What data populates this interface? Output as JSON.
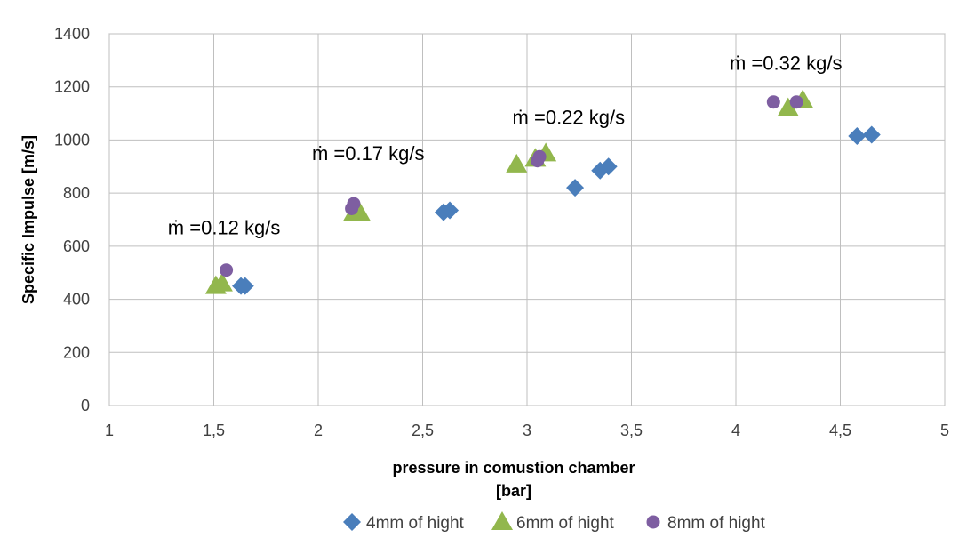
{
  "chart_data": {
    "type": "scatter",
    "title": "",
    "xlabel_lines": [
      "pressure in comustion chamber",
      "[bar]"
    ],
    "ylabel": "Specific Impulse [m/s]",
    "xlim": [
      1,
      5
    ],
    "ylim": [
      0,
      1400
    ],
    "x_ticks": [
      "1",
      "1,5",
      "2",
      "2,5",
      "3",
      "3,5",
      "4",
      "4,5",
      "5"
    ],
    "y_ticks": [
      "0",
      "200",
      "400",
      "600",
      "800",
      "1000",
      "1200",
      "1400"
    ],
    "grid": true,
    "legend_position": "bottom",
    "series": [
      {
        "name": "4mm of hight",
        "marker": "diamond",
        "color": "#4a7ebb",
        "points": [
          {
            "x": 1.63,
            "y": 450
          },
          {
            "x": 1.65,
            "y": 450
          },
          {
            "x": 2.6,
            "y": 728
          },
          {
            "x": 2.63,
            "y": 735
          },
          {
            "x": 3.23,
            "y": 820
          },
          {
            "x": 3.35,
            "y": 885
          },
          {
            "x": 3.39,
            "y": 900
          },
          {
            "x": 4.58,
            "y": 1015
          },
          {
            "x": 4.65,
            "y": 1020
          }
        ]
      },
      {
        "name": "6mm of hight",
        "marker": "triangle",
        "color": "#92b74d",
        "points": [
          {
            "x": 1.51,
            "y": 450
          },
          {
            "x": 1.54,
            "y": 460
          },
          {
            "x": 2.17,
            "y": 725
          },
          {
            "x": 2.2,
            "y": 725
          },
          {
            "x": 2.95,
            "y": 908
          },
          {
            "x": 3.04,
            "y": 930
          },
          {
            "x": 3.09,
            "y": 950
          },
          {
            "x": 4.25,
            "y": 1120
          },
          {
            "x": 4.32,
            "y": 1150
          }
        ]
      },
      {
        "name": "8mm of hight",
        "marker": "circle",
        "color": "#7e5ea1",
        "points": [
          {
            "x": 1.56,
            "y": 510
          },
          {
            "x": 2.16,
            "y": 742
          },
          {
            "x": 2.17,
            "y": 760
          },
          {
            "x": 3.05,
            "y": 922
          },
          {
            "x": 3.06,
            "y": 937
          },
          {
            "x": 4.18,
            "y": 1143
          },
          {
            "x": 4.29,
            "y": 1143
          }
        ]
      }
    ],
    "annotations": [
      {
        "text": "ṁ =0.12 kg/s",
        "x": 1.28,
        "y": 645
      },
      {
        "text": "ṁ =0.17 kg/s",
        "x": 1.97,
        "y": 925
      },
      {
        "text": "ṁ =0.22 kg/s",
        "x": 2.93,
        "y": 1060
      },
      {
        "text": "ṁ =0.32 kg/s",
        "x": 3.97,
        "y": 1265
      }
    ]
  }
}
